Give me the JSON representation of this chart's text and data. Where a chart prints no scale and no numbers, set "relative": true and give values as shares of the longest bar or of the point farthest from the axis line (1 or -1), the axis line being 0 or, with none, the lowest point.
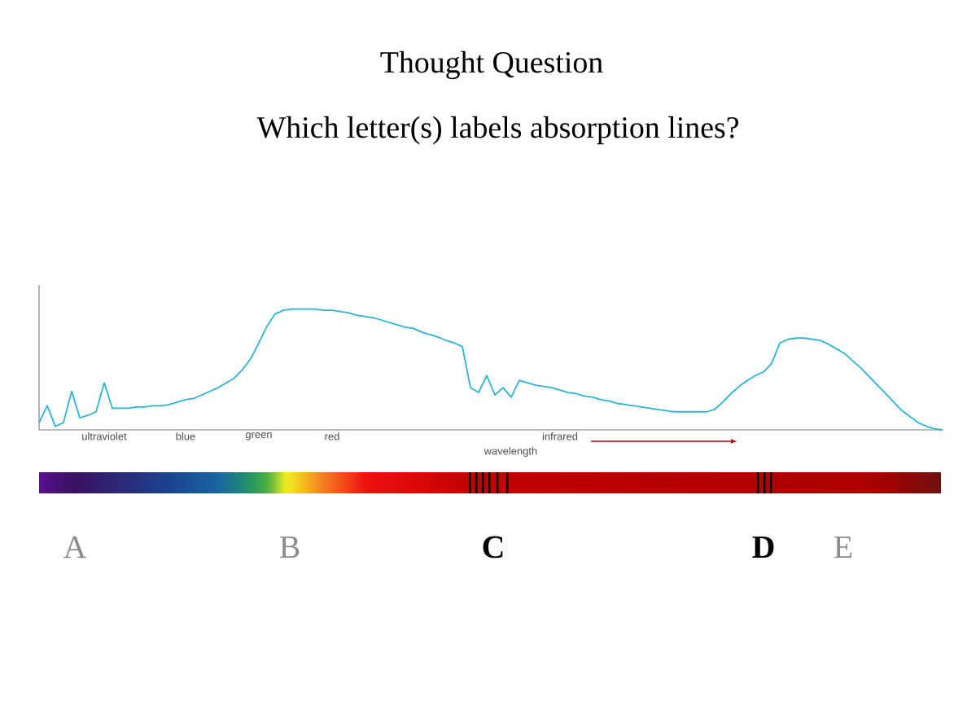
{
  "chart_data": {
    "type": "line",
    "title": "Thought Question",
    "subtitle": "Which letter(s) labels absorption lines?",
    "xlabel": "wavelength",
    "relative": true,
    "color": "#2bb5d4",
    "categories": [
      null,
      null,
      null,
      null,
      null,
      null,
      null,
      null,
      "ultraviolet",
      null,
      null,
      null,
      null,
      null,
      null,
      null,
      null,
      null,
      "blue",
      null,
      null,
      null,
      null,
      null,
      null,
      null,
      null,
      "green",
      null,
      null,
      null,
      null,
      null,
      null,
      null,
      null,
      "red",
      null,
      null,
      null,
      null,
      null,
      null,
      null,
      null,
      null,
      null,
      null,
      null,
      null,
      null,
      null,
      null,
      null,
      null,
      null,
      null,
      null,
      null,
      null,
      null,
      null,
      null,
      null,
      "infrared",
      null,
      null,
      null,
      null,
      null,
      null,
      null,
      null,
      null,
      null,
      null,
      null,
      null,
      null,
      null,
      null,
      null,
      null,
      null,
      null,
      null,
      null,
      null,
      null,
      null,
      null,
      null,
      null,
      null,
      null,
      null,
      null,
      null,
      null,
      null,
      null,
      null,
      null,
      null,
      null,
      null,
      null,
      null,
      null,
      null,
      null,
      null
    ],
    "values": [
      0.06,
      0.2,
      0.03,
      0.06,
      0.32,
      0.1,
      0.12,
      0.15,
      0.39,
      0.18,
      0.18,
      0.18,
      0.19,
      0.19,
      0.2,
      0.2,
      0.21,
      0.23,
      0.25,
      0.26,
      0.29,
      0.32,
      0.35,
      0.39,
      0.43,
      0.5,
      0.59,
      0.72,
      0.86,
      0.96,
      0.99,
      1.0,
      1.0,
      1.0,
      1.0,
      0.99,
      0.99,
      0.98,
      0.97,
      0.95,
      0.94,
      0.93,
      0.91,
      0.89,
      0.87,
      0.85,
      0.84,
      0.81,
      0.79,
      0.77,
      0.74,
      0.72,
      0.69,
      0.35,
      0.31,
      0.45,
      0.29,
      0.35,
      0.27,
      0.41,
      0.39,
      0.37,
      0.36,
      0.35,
      0.33,
      0.31,
      0.3,
      0.28,
      0.27,
      0.25,
      0.24,
      0.22,
      0.21,
      0.2,
      0.19,
      0.18,
      0.17,
      0.16,
      0.15,
      0.15,
      0.15,
      0.15,
      0.15,
      0.17,
      0.23,
      0.3,
      0.36,
      0.41,
      0.45,
      0.48,
      0.55,
      0.72,
      0.75,
      0.76,
      0.76,
      0.75,
      0.74,
      0.71,
      0.67,
      0.63,
      0.57,
      0.51,
      0.44,
      0.37,
      0.3,
      0.23,
      0.16,
      0.11,
      0.06,
      0.03,
      0.01,
      0.0
    ],
    "annotations": [
      "A",
      "B",
      "C",
      "D",
      "E"
    ]
  }
}
